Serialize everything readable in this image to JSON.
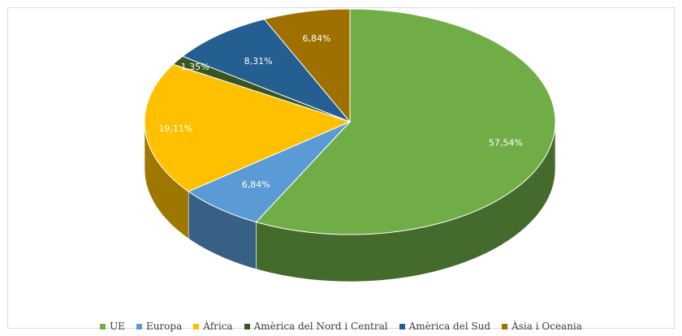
{
  "chart_data": {
    "type": "pie",
    "title": "",
    "series": [
      {
        "name": "UE",
        "value": 57.54,
        "label": "57,54%",
        "color": "#70ad47"
      },
      {
        "name": "Europa",
        "value": 6.84,
        "label": "6,84%",
        "color": "#5b9bd5"
      },
      {
        "name": "Àfrica",
        "value": 19.11,
        "label": "19,11%",
        "color": "#ffc000"
      },
      {
        "name": "Amèrica del Nord i Central",
        "value": 1.35,
        "label": "1,35%",
        "color": "#375623"
      },
      {
        "name": "Amèrica del Sud",
        "value": 8.31,
        "label": "8,31%",
        "color": "#255e91"
      },
      {
        "name": "Àsia i Oceania",
        "value": 6.84,
        "label": "6,84%",
        "color": "#9e7000"
      }
    ],
    "legend_position": "bottom",
    "style": "3d-pie"
  }
}
